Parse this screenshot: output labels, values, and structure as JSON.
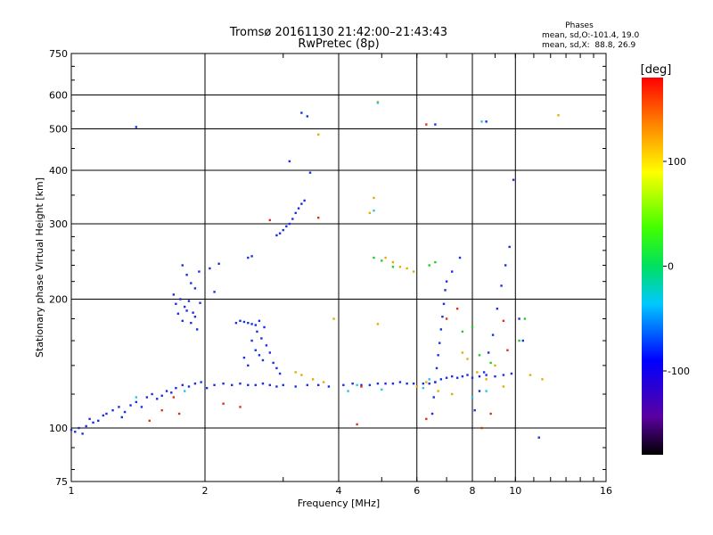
{
  "chart_data": {
    "type": "scatter",
    "title": "Tromsø 20161130 21:42:00–21:43:43",
    "subtitle": "RwPretec (8p)",
    "xlabel": "Frequency [MHz]",
    "ylabel": "Stationary phase Virtual Height [km]",
    "x_scale": "log",
    "y_scale": "log",
    "xlim": [
      1,
      16
    ],
    "ylim": [
      75,
      750
    ],
    "x_ticks": [
      1,
      2,
      4,
      6,
      8,
      10,
      16
    ],
    "x_tick_labels": [
      "1",
      "2",
      "4",
      "6",
      "8",
      "10",
      "16"
    ],
    "y_ticks": [
      75,
      100,
      200,
      300,
      400,
      500,
      600,
      750
    ],
    "y_tick_labels": [
      "75",
      "100",
      "200",
      "300",
      "400",
      "500",
      "600",
      "750"
    ],
    "grid": true,
    "phases_box": {
      "heading": "Phases",
      "line_o": "mean, sd,O:-101.4, 19.0",
      "line_x": "mean, sd,X:  88.8, 26.9"
    },
    "colorbar": {
      "label": "[deg]",
      "range": [
        -180,
        180
      ],
      "ticks": [
        100,
        0,
        -100
      ],
      "tick_labels": [
        "100",
        "0",
        "-100"
      ]
    },
    "series": [
      {
        "color": "#1a2ee6",
        "points": [
          [
            1.0,
            99
          ],
          [
            1.02,
            98
          ],
          [
            1.04,
            100
          ],
          [
            1.06,
            97
          ],
          [
            1.08,
            101
          ],
          [
            1.1,
            105
          ],
          [
            1.12,
            103
          ],
          [
            1.15,
            104
          ],
          [
            1.18,
            107
          ],
          [
            1.2,
            108
          ],
          [
            1.24,
            110
          ],
          [
            1.28,
            112
          ],
          [
            1.3,
            106
          ],
          [
            1.32,
            109
          ],
          [
            1.36,
            113
          ],
          [
            1.4,
            115
          ],
          [
            1.44,
            112
          ],
          [
            1.48,
            118
          ],
          [
            1.52,
            120
          ],
          [
            1.56,
            117
          ],
          [
            1.6,
            119
          ],
          [
            1.64,
            122
          ],
          [
            1.68,
            121
          ],
          [
            1.72,
            124
          ],
          [
            1.78,
            126
          ],
          [
            1.84,
            125
          ],
          [
            1.9,
            127
          ],
          [
            1.96,
            128
          ],
          [
            2.02,
            124
          ],
          [
            2.1,
            126
          ],
          [
            2.2,
            127
          ],
          [
            2.3,
            126
          ],
          [
            2.4,
            127
          ],
          [
            2.5,
            126
          ],
          [
            2.6,
            126
          ],
          [
            2.7,
            127
          ],
          [
            2.8,
            126
          ],
          [
            2.9,
            125
          ],
          [
            3.0,
            126
          ],
          [
            3.2,
            125
          ],
          [
            3.4,
            126
          ],
          [
            3.6,
            126
          ],
          [
            3.8,
            125
          ],
          [
            4.1,
            126
          ],
          [
            4.3,
            127
          ],
          [
            4.5,
            126
          ],
          [
            4.7,
            126
          ],
          [
            4.9,
            127
          ],
          [
            5.1,
            127
          ],
          [
            5.3,
            127
          ],
          [
            5.5,
            128
          ],
          [
            5.7,
            127
          ],
          [
            5.9,
            127
          ],
          [
            6.2,
            127
          ],
          [
            6.4,
            127
          ],
          [
            6.6,
            128
          ],
          [
            6.8,
            130
          ],
          [
            7.0,
            131
          ],
          [
            7.2,
            132
          ],
          [
            7.4,
            131
          ],
          [
            7.6,
            132
          ],
          [
            7.8,
            133
          ],
          [
            8.0,
            131
          ],
          [
            8.3,
            132
          ],
          [
            8.6,
            133
          ],
          [
            9.0,
            132
          ],
          [
            9.4,
            133
          ],
          [
            9.8,
            134
          ]
        ]
      },
      {
        "color": "#1a2ee6",
        "points": [
          [
            1.7,
            205
          ],
          [
            1.72,
            195
          ],
          [
            1.74,
            185
          ],
          [
            1.76,
            200
          ],
          [
            1.78,
            178
          ],
          [
            1.8,
            192
          ],
          [
            1.82,
            188
          ],
          [
            1.84,
            198
          ],
          [
            1.86,
            176
          ],
          [
            1.88,
            186
          ],
          [
            1.9,
            182
          ],
          [
            1.92,
            170
          ],
          [
            1.95,
            196
          ],
          [
            1.78,
            240
          ],
          [
            1.82,
            228
          ],
          [
            1.86,
            218
          ],
          [
            1.9,
            212
          ],
          [
            1.94,
            232
          ],
          [
            2.05,
            236
          ],
          [
            2.15,
            242
          ],
          [
            2.1,
            208
          ]
        ]
      },
      {
        "color": "#1a2ee6",
        "points": [
          [
            2.35,
            176
          ],
          [
            2.4,
            178
          ],
          [
            2.45,
            177
          ],
          [
            2.5,
            176
          ],
          [
            2.55,
            175
          ],
          [
            2.6,
            174
          ],
          [
            2.65,
            178
          ],
          [
            2.55,
            160
          ],
          [
            2.6,
            152
          ],
          [
            2.65,
            148
          ],
          [
            2.7,
            144
          ],
          [
            2.75,
            156
          ],
          [
            2.8,
            150
          ],
          [
            2.85,
            142
          ],
          [
            2.9,
            138
          ],
          [
            2.95,
            134
          ],
          [
            2.62,
            168
          ],
          [
            2.68,
            162
          ],
          [
            2.72,
            172
          ],
          [
            2.5,
            140
          ],
          [
            2.45,
            146
          ]
        ]
      },
      {
        "color": "#1a2ee6",
        "points": [
          [
            2.5,
            250
          ],
          [
            2.55,
            252
          ],
          [
            2.9,
            282
          ],
          [
            2.95,
            285
          ],
          [
            3.0,
            290
          ],
          [
            3.05,
            296
          ],
          [
            3.1,
            300
          ],
          [
            3.15,
            308
          ],
          [
            3.2,
            318
          ],
          [
            3.25,
            326
          ],
          [
            3.3,
            334
          ],
          [
            3.35,
            340
          ],
          [
            3.1,
            420
          ],
          [
            3.45,
            395
          ],
          [
            3.4,
            535
          ],
          [
            3.3,
            545
          ],
          [
            1.4,
            505
          ]
        ]
      },
      {
        "color": "#1a2ee6",
        "points": [
          [
            6.5,
            108
          ],
          [
            6.55,
            118
          ],
          [
            6.6,
            128
          ],
          [
            6.65,
            138
          ],
          [
            6.7,
            148
          ],
          [
            6.75,
            158
          ],
          [
            6.8,
            170
          ],
          [
            6.85,
            182
          ],
          [
            6.9,
            195
          ],
          [
            6.95,
            210
          ],
          [
            7.0,
            220
          ],
          [
            7.2,
            232
          ],
          [
            7.5,
            250
          ],
          [
            8.1,
            110
          ],
          [
            8.3,
            122
          ],
          [
            8.5,
            135
          ],
          [
            8.7,
            150
          ],
          [
            8.9,
            165
          ],
          [
            9.1,
            190
          ],
          [
            9.3,
            215
          ],
          [
            9.5,
            240
          ],
          [
            9.7,
            265
          ],
          [
            9.9,
            380
          ],
          [
            10.2,
            180
          ],
          [
            10.4,
            160
          ],
          [
            11.3,
            95
          ],
          [
            8.6,
            520
          ],
          [
            6.6,
            512
          ]
        ]
      },
      {
        "color": "#e0b000",
        "points": [
          [
            3.2,
            135
          ],
          [
            3.3,
            133
          ],
          [
            3.5,
            130
          ],
          [
            3.7,
            128
          ],
          [
            4.9,
            175
          ],
          [
            5.1,
            250
          ],
          [
            5.3,
            244
          ],
          [
            5.5,
            238
          ],
          [
            5.7,
            236
          ],
          [
            5.9,
            232
          ],
          [
            4.7,
            318
          ],
          [
            4.8,
            345
          ],
          [
            6.0,
            125
          ],
          [
            6.3,
            128
          ],
          [
            6.7,
            122
          ],
          [
            7.2,
            120
          ],
          [
            7.6,
            150
          ],
          [
            7.8,
            145
          ],
          [
            8.2,
            135
          ],
          [
            8.6,
            130
          ],
          [
            9.0,
            140
          ],
          [
            9.4,
            125
          ],
          [
            10.8,
            133
          ],
          [
            11.5,
            130
          ],
          [
            12.5,
            538
          ],
          [
            4.9,
            578
          ],
          [
            3.6,
            485
          ],
          [
            3.9,
            180
          ]
        ]
      },
      {
        "color": "#22cc22",
        "points": [
          [
            4.8,
            250
          ],
          [
            5.0,
            246
          ],
          [
            6.4,
            240
          ],
          [
            6.6,
            244
          ],
          [
            7.6,
            168
          ],
          [
            8.0,
            172
          ],
          [
            8.3,
            148
          ],
          [
            8.8,
            142
          ],
          [
            10.2,
            160
          ],
          [
            10.5,
            180
          ],
          [
            5.3,
            238
          ]
        ]
      },
      {
        "color": "#e03010",
        "points": [
          [
            1.5,
            104
          ],
          [
            1.6,
            110
          ],
          [
            1.7,
            118
          ],
          [
            1.75,
            108
          ],
          [
            2.2,
            114
          ],
          [
            2.4,
            112
          ],
          [
            2.8,
            306
          ],
          [
            3.6,
            310
          ],
          [
            4.4,
            102
          ],
          [
            4.5,
            125
          ],
          [
            6.3,
            105
          ],
          [
            7.0,
            180
          ],
          [
            7.4,
            190
          ],
          [
            8.4,
            100
          ],
          [
            8.8,
            108
          ],
          [
            9.4,
            178
          ],
          [
            9.6,
            152
          ],
          [
            6.3,
            512
          ]
        ]
      },
      {
        "color": "#20c8e0",
        "points": [
          [
            1.4,
            118
          ],
          [
            1.8,
            122
          ],
          [
            4.2,
            122
          ],
          [
            4.4,
            126
          ],
          [
            5.0,
            123
          ],
          [
            6.2,
            124
          ],
          [
            6.4,
            130
          ],
          [
            8.0,
            118
          ],
          [
            8.6,
            122
          ],
          [
            8.4,
            520
          ],
          [
            4.8,
            322
          ],
          [
            4.9,
            575
          ]
        ]
      }
    ]
  }
}
